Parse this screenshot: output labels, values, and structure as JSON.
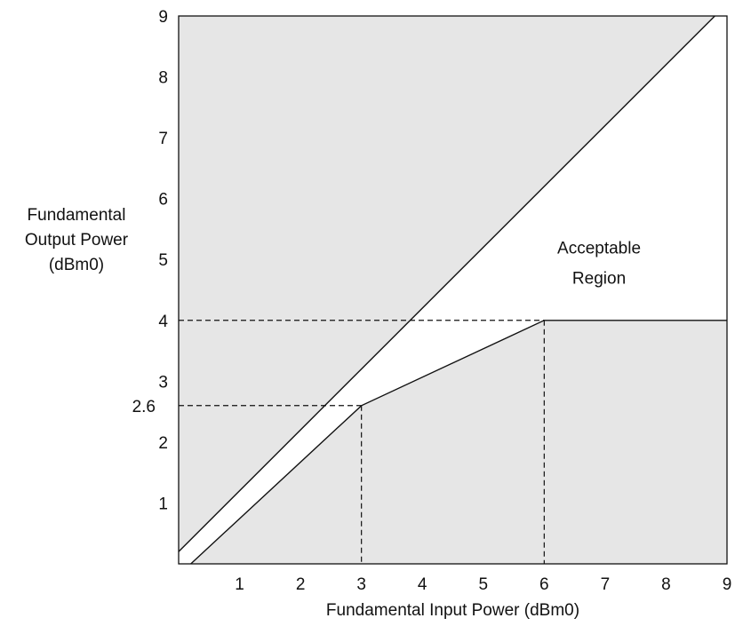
{
  "chart_data": {
    "type": "line",
    "title": "",
    "xlabel": "Fundamental Input Power (dBm0)",
    "ylabel_lines": [
      "Fundamental",
      "Output Power",
      "(dBm0)"
    ],
    "xlim": [
      0,
      9
    ],
    "ylim": [
      0,
      9
    ],
    "x_ticks": [
      1,
      2,
      3,
      4,
      5,
      6,
      7,
      8,
      9
    ],
    "y_ticks": [
      1,
      2,
      3,
      4,
      5,
      6,
      7,
      8,
      9
    ],
    "extra_y_tick": 2.6,
    "grid": false,
    "legend": "none",
    "colors": {
      "shaded_region": "#e6e6e6",
      "acceptable_region": "#ffffff",
      "line": "#111111"
    },
    "series": [
      {
        "role": "upper-boundary",
        "x": [
          0,
          8.8
        ],
        "y": [
          0.2,
          9
        ]
      },
      {
        "role": "lower-boundary",
        "x": [
          0.2,
          3,
          6,
          9
        ],
        "y": [
          0,
          2.6,
          4,
          4
        ]
      }
    ],
    "reference_lines": [
      {
        "from": [
          0,
          4
        ],
        "to": [
          6,
          4
        ]
      },
      {
        "from": [
          6,
          4
        ],
        "to": [
          6,
          0
        ]
      },
      {
        "from": [
          0,
          2.6
        ],
        "to": [
          3,
          2.6
        ]
      },
      {
        "from": [
          3,
          2.6
        ],
        "to": [
          3,
          0
        ]
      }
    ],
    "annotations": [
      {
        "text": "Acceptable",
        "x": 6.9,
        "y": 5.1
      },
      {
        "text": "Region",
        "x": 6.9,
        "y": 4.6
      }
    ]
  }
}
